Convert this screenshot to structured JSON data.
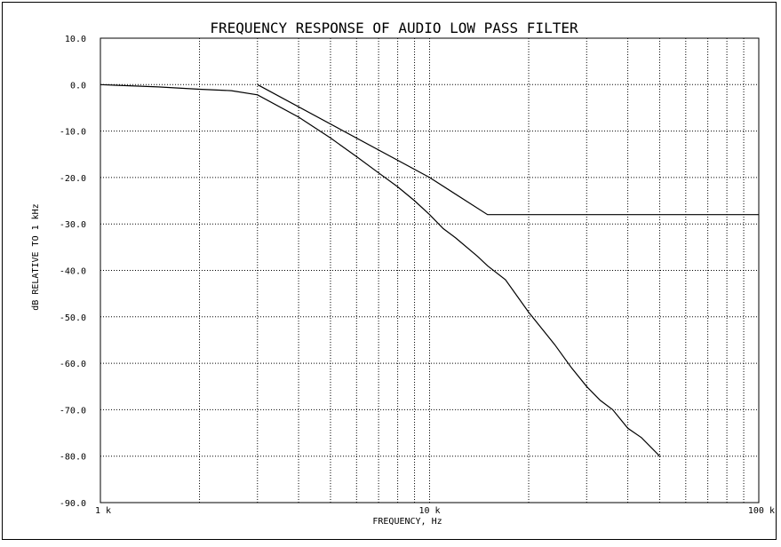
{
  "chart_data": {
    "type": "line",
    "title": "FREQUENCY RESPONSE OF AUDIO LOW PASS FILTER",
    "xlabel": "FREQUENCY, Hz",
    "ylabel": "dB RELATIVE TO 1 kHz",
    "x_scale": "log",
    "xlim": [
      1000,
      100000
    ],
    "ylim": [
      -90,
      10
    ],
    "x_tick_labels": [
      {
        "value": 1000,
        "label": "1 k"
      },
      {
        "value": 10000,
        "label": "10 k"
      },
      {
        "value": 100000,
        "label": "100 k"
      }
    ],
    "y_tick_labels": [
      {
        "value": 10,
        "label": "10.0"
      },
      {
        "value": 0,
        "label": "0.0"
      },
      {
        "value": -10,
        "label": "-10.0"
      },
      {
        "value": -20,
        "label": "-20.0"
      },
      {
        "value": -30,
        "label": "-30.0"
      },
      {
        "value": -40,
        "label": "-40.0"
      },
      {
        "value": -50,
        "label": "-50.0"
      },
      {
        "value": -60,
        "label": "-60.0"
      },
      {
        "value": -70,
        "label": "-70.0"
      },
      {
        "value": -80,
        "label": "-80.0"
      },
      {
        "value": -90,
        "label": "-90.0"
      }
    ],
    "grid": true,
    "series": [
      {
        "x": [
          3000,
          10000,
          15000,
          100000
        ],
        "y": [
          0,
          -20,
          -28,
          -28
        ]
      },
      {
        "x": [
          1000,
          1500,
          2000,
          2500,
          3000,
          4000,
          5000,
          6000,
          7000,
          8000,
          9000,
          10000,
          11000,
          12000,
          14000,
          15000,
          17000,
          20000,
          24000,
          27000,
          30000,
          33000,
          36000,
          40000,
          44000,
          50000
        ],
        "y": [
          0,
          -0.5,
          -1,
          -1.3,
          -2.2,
          -7,
          -11.5,
          -15.5,
          -19,
          -22,
          -25,
          -28,
          -31,
          -33,
          -37,
          -39,
          -42,
          -49,
          -56,
          -61,
          -65,
          -68,
          -70,
          -74,
          -76,
          -80
        ]
      }
    ]
  }
}
